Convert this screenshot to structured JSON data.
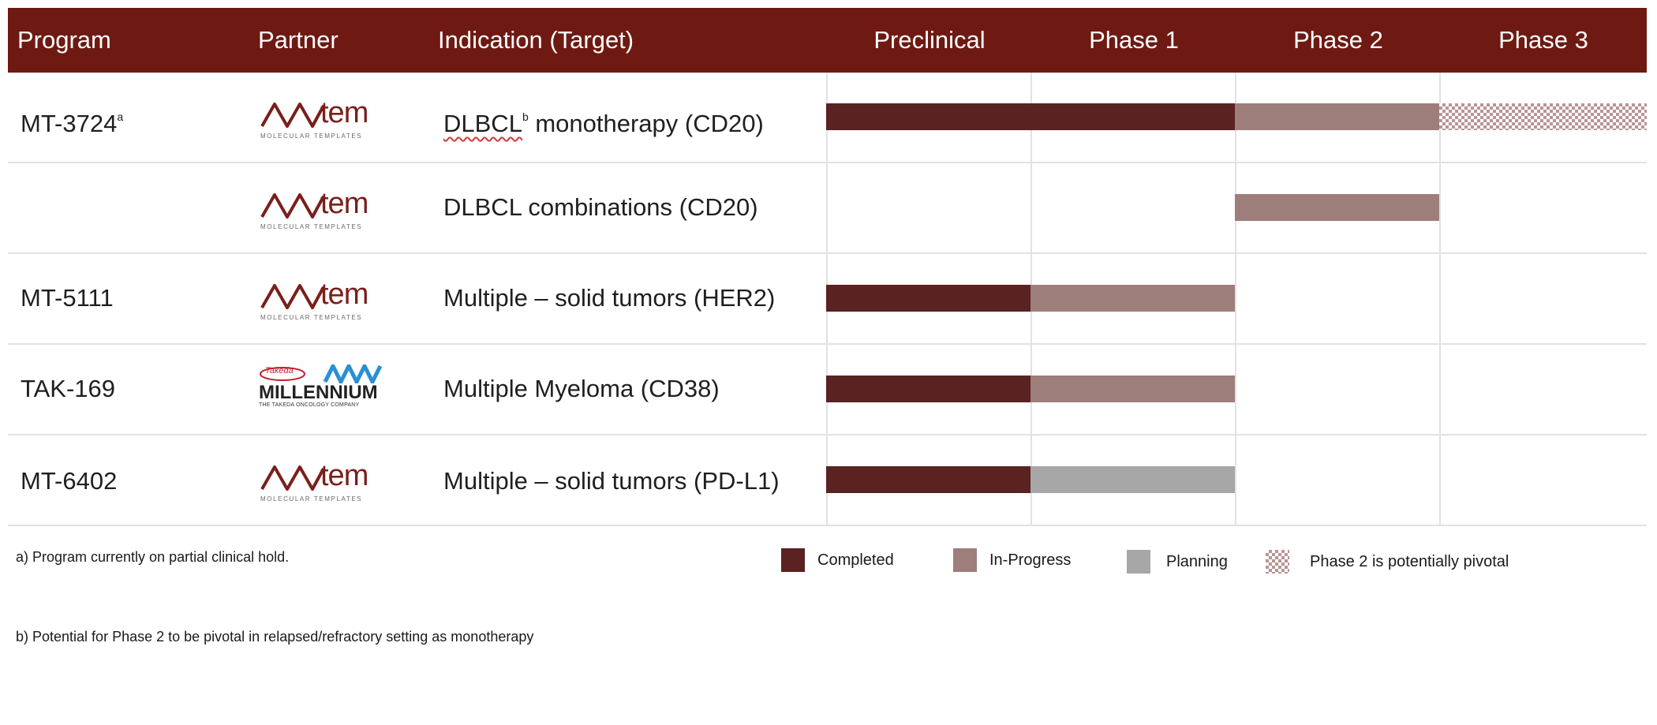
{
  "header": {
    "program": "Program",
    "partner": "Partner",
    "indication": "Indication (Target)",
    "phases": [
      "Preclinical",
      "Phase 1",
      "Phase 2",
      "Phase 3"
    ]
  },
  "rows": [
    {
      "program": "MT-3724",
      "program_note": "a",
      "partner_logo": "tem",
      "partner_sub": "MOLECULAR TEMPLATES",
      "indication_pre": "DLBCL",
      "indication_note": "b",
      "indication_post": " monotherapy (CD20)",
      "bars": [
        {
          "status": "completed",
          "from": 0,
          "to": 2
        },
        {
          "status": "inprogress",
          "from": 2,
          "to": 3
        },
        {
          "status": "pivotal",
          "from": 3,
          "to": 4
        }
      ]
    },
    {
      "program": "",
      "partner_logo": "tem",
      "partner_sub": "MOLECULAR TEMPLATES",
      "indication": "DLBCL combinations (CD20)",
      "bars": [
        {
          "status": "inprogress",
          "from": 2,
          "to": 3
        }
      ]
    },
    {
      "program": "MT-5111",
      "partner_logo": "tem",
      "partner_sub": "MOLECULAR TEMPLATES",
      "indication": "Multiple – solid tumors (HER2)",
      "bars": [
        {
          "status": "completed",
          "from": 0,
          "to": 1
        },
        {
          "status": "inprogress",
          "from": 1,
          "to": 2
        }
      ]
    },
    {
      "program": "TAK-169",
      "partner_logo": "MILLENNIUM",
      "partner_takeda": "Takeda",
      "partner_sub": "THE TAKEDA ONCOLOGY COMPANY",
      "indication": "Multiple Myeloma (CD38)",
      "bars": [
        {
          "status": "completed",
          "from": 0,
          "to": 1
        },
        {
          "status": "inprogress",
          "from": 1,
          "to": 2
        }
      ]
    },
    {
      "program": "MT-6402",
      "partner_logo": "tem",
      "partner_sub": "MOLECULAR TEMPLATES",
      "indication": "Multiple – solid tumors (PD-L1)",
      "bars": [
        {
          "status": "completed",
          "from": 0,
          "to": 1
        },
        {
          "status": "planning",
          "from": 1,
          "to": 2
        }
      ]
    }
  ],
  "footnotes": {
    "a": "a)  Program currently on partial clinical hold.",
    "b": "b)  Potential for Phase 2 to be pivotal in relapsed/refractory setting as monotherapy"
  },
  "legend": [
    {
      "key": "completed",
      "label": "Completed",
      "color": "#5a2221"
    },
    {
      "key": "inprogress",
      "label": "In-Progress",
      "color": "#9e7e7b"
    },
    {
      "key": "planning",
      "label": "Planning",
      "color": "#a7a7a7"
    },
    {
      "key": "pivotal",
      "label": "Phase 2 is potentially pivotal",
      "color": "#b89594"
    }
  ],
  "colors": {
    "header_bg": "#6e1a12",
    "completed": "#5a2221",
    "inprogress": "#9e7e7b",
    "planning": "#a7a7a7"
  }
}
